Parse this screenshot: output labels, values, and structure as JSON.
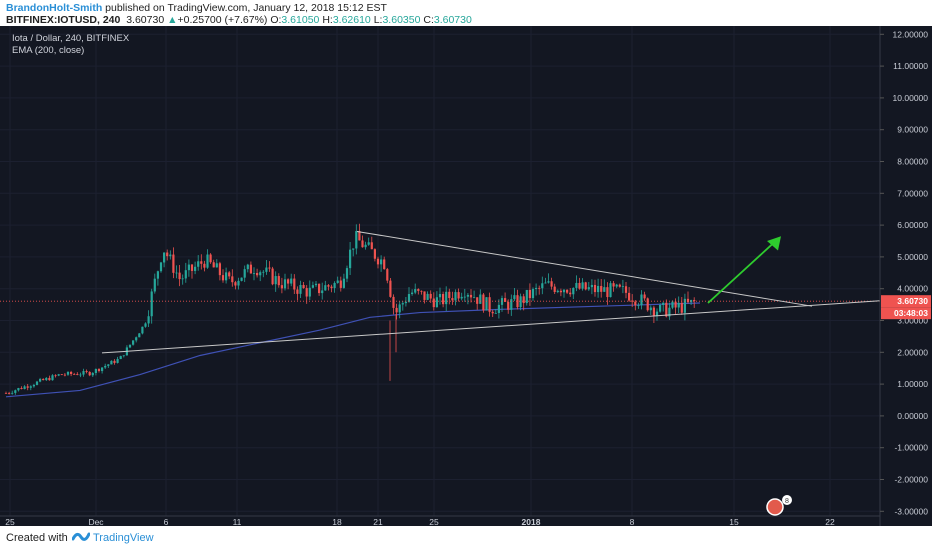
{
  "header": {
    "author": "BrandonHolt-Smith",
    "published": " published on TradingView.com, January 12, 2018 15:12 EST",
    "symbol": "BITFINEX:IOTUSD, 240",
    "last": "3.60730",
    "change_arrow": "▲",
    "change": "+0.25700 (+7.67%)",
    "o_label": "O:",
    "o": "3.61050",
    "h_label": "H:",
    "h": "3.62610",
    "l_label": "L:",
    "l": "3.60350",
    "c_label": "C:",
    "c": "3.60730"
  },
  "legend": {
    "title": "Iota / Dollar, 240, BITFINEX",
    "indicator": "EMA (200, close)"
  },
  "price_axis": {
    "ticks": [
      "12.00000",
      "11.00000",
      "10.00000",
      "9.00000",
      "8.00000",
      "7.00000",
      "6.00000",
      "5.00000",
      "4.00000",
      "3.00000",
      "2.00000",
      "1.00000",
      "0.00000",
      "-1.00000",
      "-2.00000",
      "-3.00000"
    ],
    "last_price": "3.60730",
    "countdown": "03:48:03"
  },
  "time_axis": {
    "ticks": [
      "25",
      "Dec",
      "6",
      "11",
      "18",
      "21",
      "25",
      "2018",
      "8",
      "15",
      "22"
    ]
  },
  "footer": {
    "created": "Created with",
    "brand": "TradingView",
    "icon": "tradingview-logo-icon"
  },
  "colors": {
    "background": "#131722",
    "bull": "#26a69a",
    "bear": "#ef5350",
    "ema": "#3f51b5",
    "trendline": "#c8c8c8",
    "arrow": "#2ecc2e",
    "last_price": "#ef5350"
  },
  "chart_data": {
    "type": "candlestick",
    "y_range": [
      -3,
      12
    ],
    "price_line": 3.6073,
    "ema_period": 200,
    "annotations": [
      "descending trendline from 5.8",
      "ascending trendline from 2.0",
      "green up arrow"
    ],
    "badge": "8"
  }
}
